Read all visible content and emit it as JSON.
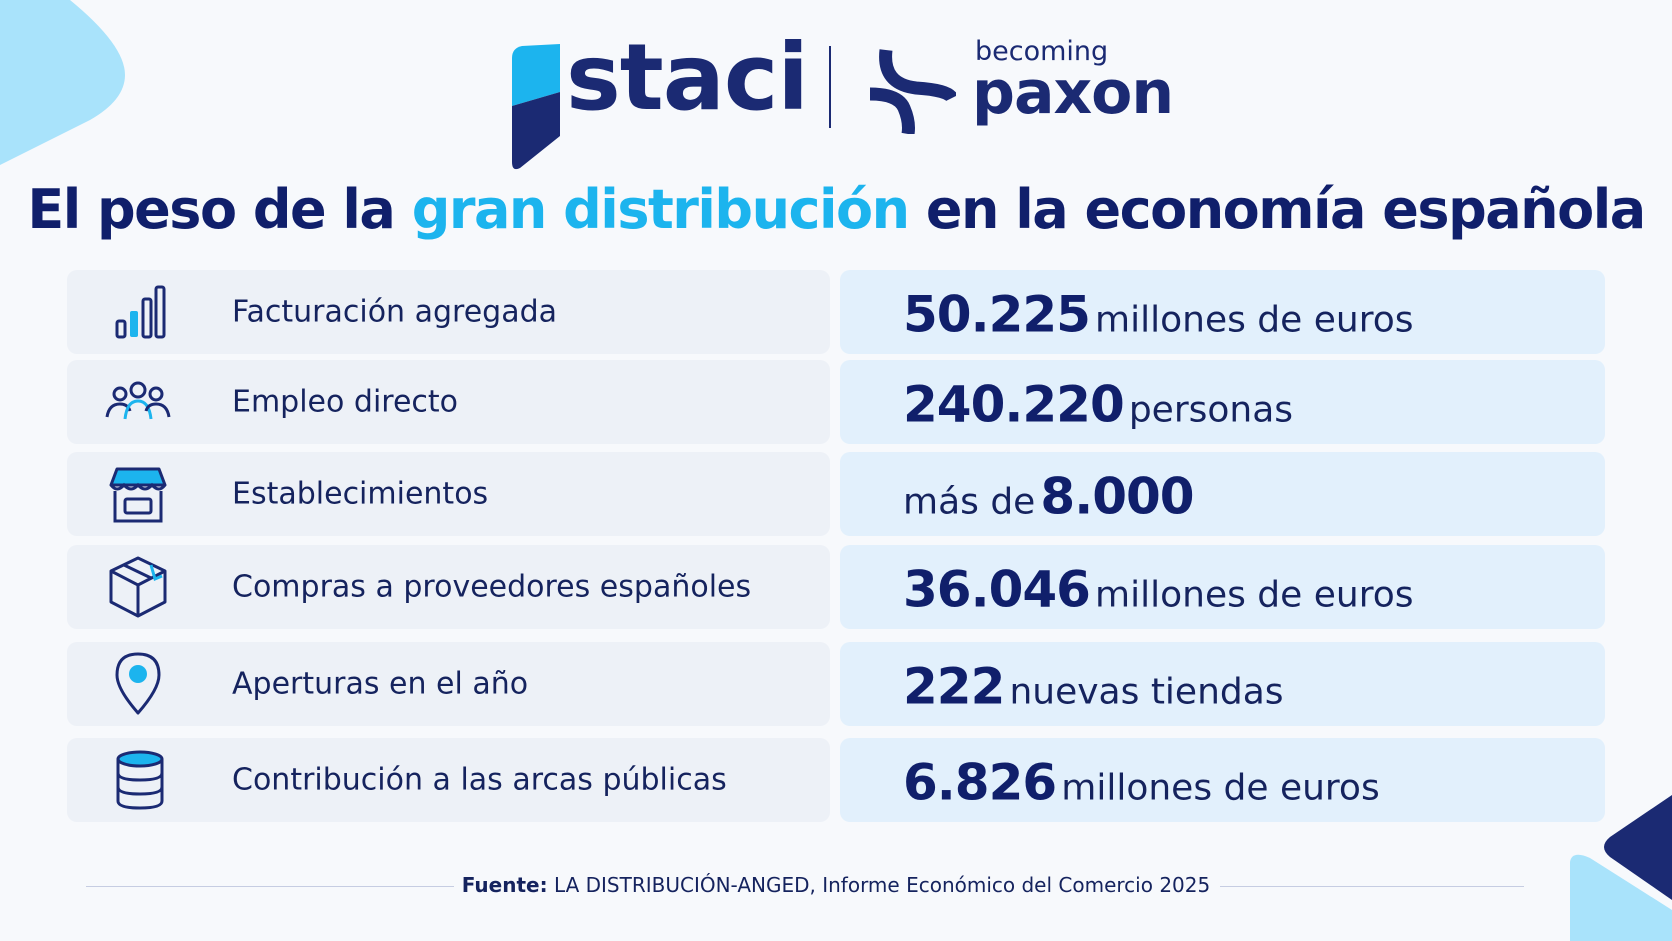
{
  "brand": {
    "staci": "staci",
    "becoming": "becoming",
    "paxon": "paxon",
    "colors": {
      "navy": "#1b2a73",
      "cyan": "#1cb4ee",
      "light_cyan": "#a9e3fb"
    }
  },
  "title": {
    "part1": "El peso de la",
    "accent": "gran distribución",
    "part2": "en la economía española"
  },
  "rows": [
    {
      "icon": "bar-chart-icon",
      "label": "Facturación agregada",
      "prefix": "",
      "number": "50.225",
      "unit": "millones de euros"
    },
    {
      "icon": "people-icon",
      "label": "Empleo directo",
      "prefix": "",
      "number": "240.220",
      "unit": "personas"
    },
    {
      "icon": "storefront-icon",
      "label": "Establecimientos",
      "prefix": "más de",
      "number": "8.000",
      "unit": ""
    },
    {
      "icon": "box-icon",
      "label": "Compras a proveedores españoles",
      "prefix": "",
      "number": "36.046",
      "unit": "millones de euros"
    },
    {
      "icon": "map-pin-icon",
      "label": "Aperturas en el año",
      "prefix": "",
      "number": "222",
      "unit": "nuevas tiendas"
    },
    {
      "icon": "coin-stack-icon",
      "label": "Contribución a las arcas públicas",
      "prefix": "",
      "number": "6.826",
      "unit": "millones de euros"
    }
  ],
  "footer": {
    "source_label": "Fuente:",
    "source_text": "LA DISTRIBUCIÓN-ANGED, Informe Económico del Comercio  2025"
  }
}
